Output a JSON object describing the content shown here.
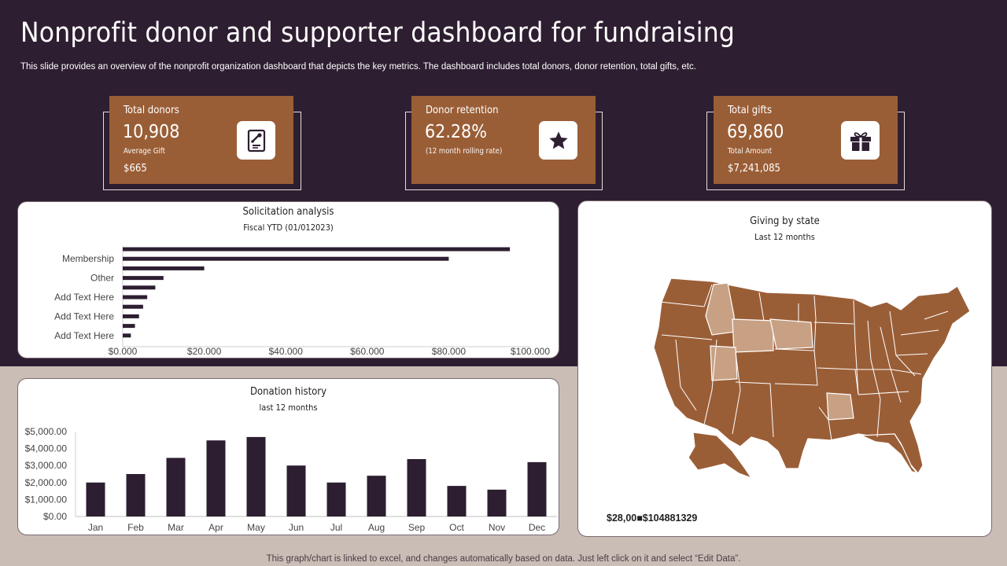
{
  "header": {
    "title": "Nonprofit donor and supporter dashboard for fundraising",
    "subtitle": "This slide provides an overview of the nonprofit organization dashboard that depicts the key metrics. The dashboard includes total donors, donor retention, total gifts, etc."
  },
  "colors": {
    "dark": "#2e1e31",
    "brown": "#9a5e37",
    "light_state": "#c8a184",
    "background": "#c9bdb6"
  },
  "kpis": [
    {
      "label": "Total donors",
      "value": "10,908",
      "sub": "Average Gift",
      "sub2": "$665",
      "icon": "certificate-icon"
    },
    {
      "label": "Donor retention",
      "value": "62.28%",
      "sub": "(12 month rolling rate)",
      "sub2": "",
      "icon": "star-icon"
    },
    {
      "label": "Total gifts",
      "value": "69,860",
      "sub": "Total Amount",
      "sub2": "$7,241,085",
      "icon": "gift-icon"
    }
  ],
  "solicitation": {
    "title": "Solicitation analysis",
    "subtitle": "Fiscal YTD (01/012023)"
  },
  "donation": {
    "title": "Donation history",
    "subtitle": "last 12 months"
  },
  "giving": {
    "title": "Giving by state",
    "subtitle": "Last 12 months",
    "amount": "$28,00■$104881329"
  },
  "footer": "This graph/chart is linked to excel, and changes automatically based on data. Just left click on it and select “Edit Data”.",
  "chart_data": [
    {
      "type": "bar",
      "orientation": "horizontal",
      "title": "Solicitation analysis",
      "subtitle": "Fiscal YTD (01/012023)",
      "categories": [
        "",
        "Membership",
        "",
        "Other",
        "",
        "Add Text Here",
        "",
        "Add Text Here",
        "",
        "Add Text Here"
      ],
      "values": [
        95000,
        80000,
        20000,
        10000,
        8000,
        6000,
        5000,
        4000,
        3000,
        2000
      ],
      "xticks": [
        "$0.000",
        "$20.000",
        "$40.000",
        "$60.000",
        "$80.000",
        "$100.000"
      ],
      "xlim": [
        0,
        100000
      ]
    },
    {
      "type": "bar",
      "title": "Donation history",
      "subtitle": "last 12 months",
      "categories": [
        "Jan",
        "Feb",
        "Mar",
        "Apr",
        "May",
        "Jun",
        "Jul",
        "Aug",
        "Sep",
        "Oct",
        "Nov",
        "Dec"
      ],
      "values": [
        2000,
        2500,
        3450,
        4480,
        4680,
        3000,
        2000,
        2400,
        3380,
        1800,
        1580,
        3200
      ],
      "yticks": [
        "$0.00",
        "$1,000.00",
        "$2,000.00",
        "$3,000.00",
        "$4,000.00",
        "$5,000.00"
      ],
      "ylim": [
        0,
        5000
      ]
    }
  ]
}
